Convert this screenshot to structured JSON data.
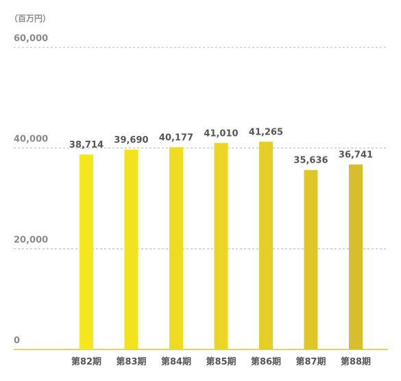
{
  "chart_data": {
    "type": "bar",
    "unit_label": "（百万円）",
    "categories": [
      "第82期",
      "第83期",
      "第84期",
      "第85期",
      "第86期",
      "第87期",
      "第88期"
    ],
    "values": [
      38714,
      39690,
      40177,
      41010,
      41265,
      35636,
      36741
    ],
    "value_labels": [
      "38,714",
      "39,690",
      "40,177",
      "41,010",
      "41,265",
      "35,636",
      "36,741"
    ],
    "y_ticks": [
      0,
      20000,
      40000,
      60000
    ],
    "y_tick_labels": [
      "0",
      "20,000",
      "40,000",
      "60,000"
    ],
    "ylim": [
      0,
      60000
    ],
    "grid": true,
    "bar_colors": [
      "#f5e61e",
      "#f3e31f",
      "#efdc21",
      "#ead623",
      "#e4cf25",
      "#dfc728",
      "#d9bd2c"
    ]
  }
}
